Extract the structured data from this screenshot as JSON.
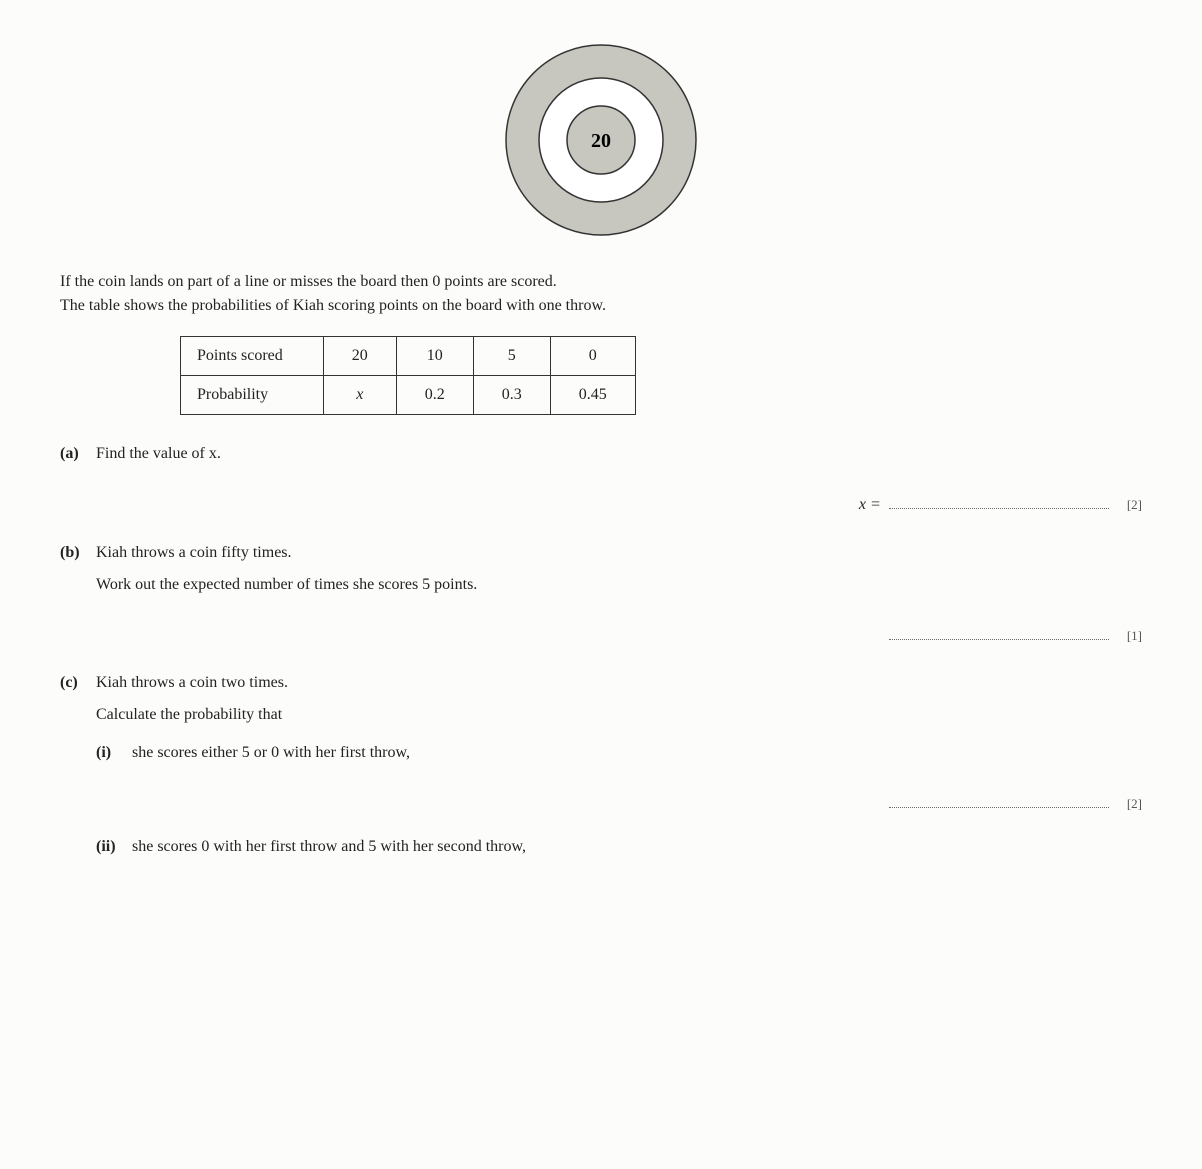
{
  "target": {
    "outer_radius": 95,
    "mid_radius": 62,
    "inner_radius": 34,
    "outer_fill": "#c7c7bf",
    "mid_fill": "#ffffff",
    "inner_fill": "#c7c7bf",
    "stroke": "#333333",
    "center_label": "20",
    "center_fontsize": 20
  },
  "intro_line1": "If the coin lands on part of a line or misses the board then 0 points are scored.",
  "intro_line2": "The table shows the probabilities of Kiah scoring points on the board with one throw.",
  "table": {
    "row1_header": "Points scored",
    "row1": [
      "20",
      "10",
      "5",
      "0"
    ],
    "row2_header": "Probability",
    "row2": [
      "x",
      "0.2",
      "0.3",
      "0.45"
    ]
  },
  "parts": {
    "a": {
      "label": "(a)",
      "text": "Find the value of x.",
      "answer_prefix": "x =",
      "marks": "[2]"
    },
    "b": {
      "label": "(b)",
      "text1": "Kiah throws a coin fifty times.",
      "text2": "Work out the expected number of times she scores 5 points.",
      "marks": "[1]"
    },
    "c": {
      "label": "(c)",
      "text1": "Kiah throws a coin two times.",
      "text2": "Calculate the probability that",
      "i_label": "(i)",
      "i_text": "she scores either 5 or 0 with her first throw,",
      "i_marks": "[2]",
      "ii_label": "(ii)",
      "ii_text": "she scores 0 with her first throw and 5 with her second throw,"
    }
  }
}
